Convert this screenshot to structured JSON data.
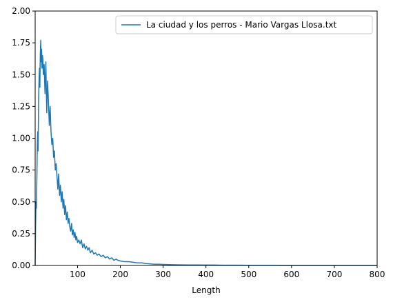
{
  "chart_data": {
    "type": "line",
    "xlabel": "Length",
    "ylabel": "",
    "xlim": [
      1,
      800
    ],
    "ylim": [
      0,
      2.0
    ],
    "x_ticks": [
      100,
      200,
      300,
      400,
      500,
      600,
      700,
      800
    ],
    "x_tick_labels": [
      "100",
      "200",
      "300",
      "400",
      "500",
      "600",
      "700",
      "800"
    ],
    "y_ticks": [
      0,
      0.25,
      0.5,
      0.75,
      1.0,
      1.25,
      1.5,
      1.75,
      2.0
    ],
    "y_tick_labels": [
      "0.00",
      "0.25",
      "0.50",
      "0.75",
      "1.00",
      "1.25",
      "1.50",
      "1.75",
      "2.00"
    ],
    "grid": false,
    "legend_position": "top-right",
    "series": [
      {
        "name": "La ciudad y los perros - Mario Vargas Llosa.txt",
        "color": "#1f77b4",
        "x": [
          1,
          2,
          3,
          4,
          5,
          6,
          7,
          8,
          9,
          10,
          11,
          12,
          13,
          14,
          15,
          16,
          17,
          18,
          19,
          20,
          22,
          24,
          26,
          28,
          30,
          32,
          34,
          36,
          38,
          40,
          42,
          44,
          46,
          48,
          50,
          52,
          54,
          56,
          58,
          60,
          62,
          64,
          66,
          68,
          70,
          72,
          74,
          76,
          78,
          80,
          82,
          84,
          86,
          88,
          90,
          92,
          94,
          96,
          98,
          100,
          103,
          106,
          109,
          112,
          115,
          118,
          121,
          124,
          127,
          130,
          134,
          138,
          142,
          146,
          150,
          155,
          160,
          165,
          170,
          175,
          180,
          185,
          190,
          195,
          200,
          210,
          220,
          230,
          240,
          250,
          260,
          270,
          280,
          290,
          300,
          320,
          340,
          360,
          380,
          400,
          420,
          440,
          460,
          480,
          500,
          520,
          540,
          560,
          580,
          600,
          650,
          700,
          750,
          800
        ],
        "y": [
          0.0,
          0.3,
          0.5,
          0.45,
          0.7,
          0.95,
          1.05,
          0.9,
          1.3,
          1.45,
          1.55,
          1.4,
          1.65,
          1.77,
          1.6,
          1.7,
          1.55,
          1.65,
          1.62,
          1.5,
          1.58,
          1.35,
          1.6,
          1.2,
          1.45,
          1.3,
          1.1,
          1.25,
          1.05,
          0.95,
          1.0,
          0.85,
          0.9,
          0.75,
          0.8,
          0.7,
          0.6,
          0.72,
          0.55,
          0.63,
          0.5,
          0.58,
          0.45,
          0.52,
          0.4,
          0.47,
          0.36,
          0.42,
          0.33,
          0.37,
          0.3,
          0.27,
          0.33,
          0.24,
          0.28,
          0.22,
          0.26,
          0.2,
          0.23,
          0.18,
          0.2,
          0.17,
          0.2,
          0.14,
          0.17,
          0.13,
          0.15,
          0.12,
          0.14,
          0.1,
          0.12,
          0.09,
          0.1,
          0.08,
          0.09,
          0.07,
          0.08,
          0.06,
          0.07,
          0.05,
          0.06,
          0.04,
          0.05,
          0.04,
          0.035,
          0.03,
          0.03,
          0.025,
          0.02,
          0.02,
          0.015,
          0.012,
          0.01,
          0.01,
          0.008,
          0.006,
          0.005,
          0.004,
          0.004,
          0.003,
          0.003,
          0.002,
          0.002,
          0.002,
          0.001,
          0.001,
          0.001,
          0.001,
          0.0,
          0.0,
          0.0,
          0.0,
          0.0,
          0.0
        ]
      }
    ]
  }
}
